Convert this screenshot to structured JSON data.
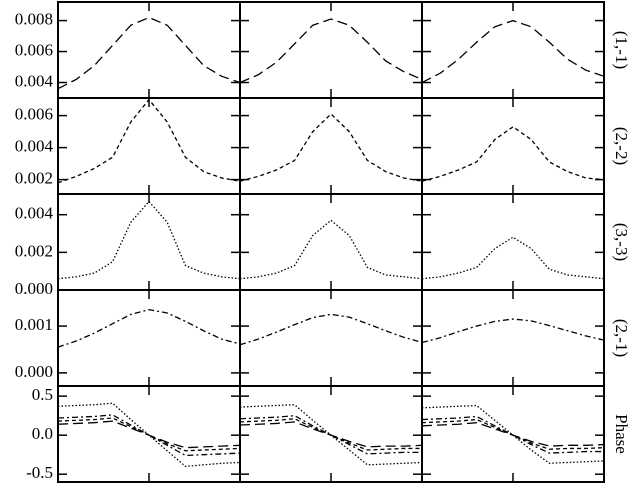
{
  "chart_data": [
    {
      "type": "line",
      "label": "(1,-1)",
      "xlim": [
        -1,
        1
      ],
      "xticks": [
        0
      ],
      "x": [
        -1,
        -0.8,
        -0.6,
        -0.4,
        -0.2,
        0,
        0.2,
        0.4,
        0.6,
        0.8,
        1
      ],
      "ylim": [
        0.003,
        0.0092
      ],
      "yticks": [
        0.004,
        0.006,
        0.008
      ],
      "panels": [
        {
          "series": [
            {
              "color": "#000",
              "dash": "10,5",
              "values": [
                0.0036,
                0.0042,
                0.0051,
                0.0064,
                0.0077,
                0.0082,
                0.0077,
                0.0064,
                0.0051,
                0.0044,
                0.004
              ]
            }
          ]
        },
        {
          "series": [
            {
              "color": "#000",
              "dash": "10,5",
              "values": [
                0.004,
                0.0045,
                0.0053,
                0.0065,
                0.0077,
                0.0081,
                0.0077,
                0.0066,
                0.0054,
                0.0047,
                0.0042
              ]
            }
          ]
        },
        {
          "series": [
            {
              "color": "#000",
              "dash": "10,5",
              "values": [
                0.004,
                0.0046,
                0.0055,
                0.0066,
                0.0076,
                0.008,
                0.0076,
                0.0066,
                0.0055,
                0.0048,
                0.0044
              ]
            }
          ]
        }
      ]
    },
    {
      "type": "line",
      "label": "(2,-2)",
      "xlim": [
        -1,
        1
      ],
      "xticks": [
        0
      ],
      "x": [
        -1,
        -0.8,
        -0.6,
        -0.4,
        -0.2,
        0,
        0.2,
        0.4,
        0.6,
        0.8,
        1
      ],
      "ylim": [
        0.0011,
        0.0071
      ],
      "yticks": [
        0.002,
        0.004,
        0.006
      ],
      "panels": [
        {
          "series": [
            {
              "color": "#000",
              "dash": "4,3",
              "values": [
                0.0018,
                0.0022,
                0.0027,
                0.0034,
                0.0056,
                0.007,
                0.0056,
                0.0034,
                0.0025,
                0.0021,
                0.0019
              ]
            }
          ]
        },
        {
          "series": [
            {
              "color": "#000",
              "dash": "4,3",
              "values": [
                0.0019,
                0.0022,
                0.0026,
                0.0032,
                0.005,
                0.0061,
                0.005,
                0.0032,
                0.0025,
                0.0021,
                0.0019
              ]
            }
          ]
        },
        {
          "series": [
            {
              "color": "#000",
              "dash": "4,3",
              "values": [
                0.0019,
                0.0022,
                0.0026,
                0.0031,
                0.0045,
                0.0053,
                0.0045,
                0.0031,
                0.0025,
                0.0021,
                0.002
              ]
            }
          ]
        }
      ]
    },
    {
      "type": "line",
      "label": "(3,-3)",
      "xlim": [
        -1,
        1
      ],
      "xticks": [
        0
      ],
      "x": [
        -1,
        -0.8,
        -0.6,
        -0.4,
        -0.2,
        0,
        0.2,
        0.4,
        0.6,
        0.8,
        1
      ],
      "ylim": [
        0,
        0.0051
      ],
      "yticks": [
        {
          "value": 0,
          "label": "0.000"
        },
        0.002,
        0.004
      ],
      "panels": [
        {
          "series": [
            {
              "color": "#000",
              "dash": "1.5,2",
              "values": [
                0.0006,
                0.0007,
                0.0009,
                0.0015,
                0.0036,
                0.0047,
                0.0036,
                0.0013,
                0.0009,
                0.0007,
                0.0006
              ]
            }
          ]
        },
        {
          "series": [
            {
              "color": "#000",
              "dash": "1.5,2",
              "values": [
                0.0006,
                0.0007,
                0.0009,
                0.0013,
                0.0029,
                0.0037,
                0.0029,
                0.0012,
                0.0008,
                0.0007,
                0.0006
              ]
            }
          ]
        },
        {
          "series": [
            {
              "color": "#000",
              "dash": "1.5,2",
              "values": [
                0.0006,
                0.0007,
                0.0009,
                0.0012,
                0.0022,
                0.0028,
                0.0022,
                0.0011,
                0.0008,
                0.0007,
                0.0006
              ]
            }
          ]
        }
      ]
    },
    {
      "type": "line",
      "label": "(2,-1)",
      "xlim": [
        -1,
        1
      ],
      "xticks": [
        0
      ],
      "x": [
        -1,
        -0.8,
        -0.6,
        -0.4,
        -0.2,
        0,
        0.2,
        0.4,
        0.6,
        0.8,
        1
      ],
      "ylim": [
        -0.00028,
        0.00177
      ],
      "yticks": [
        {
          "value": 0,
          "label": "0.000"
        },
        0.001
      ],
      "panels": [
        {
          "series": [
            {
              "color": "#000",
              "dash": "6,3,2,3",
              "values": [
                0.00055,
                0.00068,
                0.00085,
                0.00105,
                0.00125,
                0.00135,
                0.00128,
                0.0011,
                0.0009,
                0.00072,
                0.00062
              ]
            }
          ]
        },
        {
          "series": [
            {
              "color": "#000",
              "dash": "6,3,2,3",
              "values": [
                0.0006,
                0.00072,
                0.00087,
                0.00103,
                0.00118,
                0.00125,
                0.00119,
                0.00105,
                0.0009,
                0.00076,
                0.00065
              ]
            }
          ]
        },
        {
          "series": [
            {
              "color": "#000",
              "dash": "6,3,2,3",
              "values": [
                0.00065,
                0.00075,
                0.00088,
                0.001,
                0.0011,
                0.00115,
                0.00111,
                0.00101,
                0.0009,
                0.00079,
                0.0007
              ]
            }
          ]
        }
      ]
    },
    {
      "type": "line",
      "label": "Phase",
      "xlim": [
        -1,
        1
      ],
      "xticks": [
        0
      ],
      "x": [
        -1,
        -0.8,
        -0.6,
        -0.4,
        -0.2,
        0,
        0.2,
        0.4,
        0.6,
        0.8,
        1
      ],
      "ylim": [
        -0.6,
        0.63
      ],
      "yticks": [
        -0.5,
        {
          "value": 0,
          "label": "0.0"
        },
        0.5
      ],
      "panels": [
        {
          "series": [
            {
              "color": "#000",
              "dash": "1.5,2",
              "values": [
                0.37,
                0.38,
                0.39,
                0.41,
                0.2,
                0,
                -0.2,
                -0.4,
                -0.38,
                -0.36,
                -0.35
              ]
            },
            {
              "color": "#000",
              "dash": "6,3,2,3",
              "values": [
                0.22,
                0.23,
                0.24,
                0.26,
                0.13,
                0,
                -0.13,
                -0.26,
                -0.25,
                -0.24,
                -0.23
              ]
            },
            {
              "color": "#000",
              "dash": "4,3",
              "values": [
                0.18,
                0.19,
                0.2,
                0.22,
                0.11,
                0,
                -0.11,
                -0.2,
                -0.19,
                -0.18,
                -0.17
              ]
            },
            {
              "color": "#000",
              "dash": "10,5",
              "values": [
                0.14,
                0.15,
                0.16,
                0.18,
                0.09,
                0,
                -0.09,
                -0.16,
                -0.15,
                -0.14,
                -0.13
              ]
            }
          ]
        },
        {
          "series": [
            {
              "color": "#000",
              "dash": "1.5,2",
              "values": [
                0.36,
                0.37,
                0.38,
                0.39,
                0.19,
                0,
                -0.19,
                -0.38,
                -0.37,
                -0.36,
                -0.35
              ]
            },
            {
              "color": "#000",
              "dash": "6,3,2,3",
              "values": [
                0.21,
                0.22,
                0.23,
                0.25,
                0.12,
                0,
                -0.12,
                -0.24,
                -0.23,
                -0.22,
                -0.22
              ]
            },
            {
              "color": "#000",
              "dash": "4,3",
              "values": [
                0.17,
                0.18,
                0.19,
                0.21,
                0.1,
                0,
                -0.1,
                -0.19,
                -0.18,
                -0.17,
                -0.17
              ]
            },
            {
              "color": "#000",
              "dash": "10,5",
              "values": [
                0.13,
                0.14,
                0.15,
                0.17,
                0.08,
                0,
                -0.08,
                -0.15,
                -0.14,
                -0.14,
                -0.13
              ]
            }
          ]
        },
        {
          "series": [
            {
              "color": "#000",
              "dash": "1.5,2",
              "values": [
                0.35,
                0.36,
                0.37,
                0.38,
                0.19,
                0,
                -0.19,
                -0.36,
                -0.35,
                -0.34,
                -0.33
              ]
            },
            {
              "color": "#000",
              "dash": "6,3,2,3",
              "values": [
                0.2,
                0.21,
                0.22,
                0.24,
                0.12,
                0,
                -0.12,
                -0.23,
                -0.22,
                -0.21,
                -0.21
              ]
            },
            {
              "color": "#000",
              "dash": "4,3",
              "values": [
                0.16,
                0.17,
                0.18,
                0.2,
                0.1,
                0,
                -0.1,
                -0.18,
                -0.17,
                -0.17,
                -0.16
              ]
            },
            {
              "color": "#000",
              "dash": "10,5",
              "values": [
                0.12,
                0.13,
                0.14,
                0.16,
                0.08,
                0,
                -0.08,
                -0.14,
                -0.13,
                -0.13,
                -0.12
              ]
            }
          ]
        }
      ]
    }
  ]
}
